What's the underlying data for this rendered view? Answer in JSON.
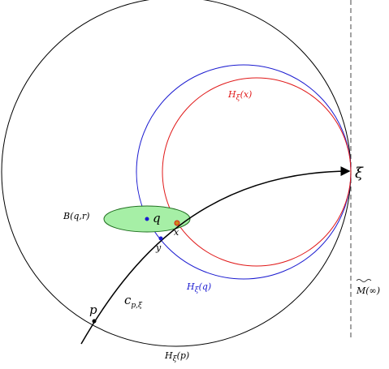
{
  "labels": {
    "xi": "ξ",
    "B": {
      "main": "B",
      "sub": "(q,r)"
    },
    "q": "q",
    "x": "x",
    "y": "y",
    "p": "p",
    "c": {
      "main": "c",
      "sub": "p,ξ"
    },
    "H_red": {
      "main": "H",
      "sub": "ξ",
      "arg": "(x)"
    },
    "H_blue": {
      "main": "H",
      "sub": "ξ",
      "arg": "(q)"
    },
    "H_black": {
      "main": "H",
      "sub": "ξ",
      "arg": "(p)"
    },
    "M": {
      "main": "M",
      "arg": "(∞)"
    }
  },
  "colors": {
    "outer_circle": "#000000",
    "horosphere_q": "#1a1ad0",
    "horosphere_x": "#e01818",
    "ball_fill": "#a6efa6",
    "ball_stroke": "#1e6e1e",
    "boundary_line": "#666666"
  }
}
